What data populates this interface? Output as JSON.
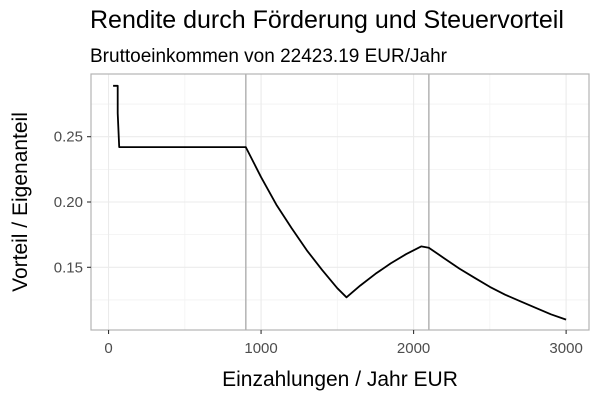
{
  "chart_data": {
    "type": "line",
    "title": "Rendite durch Förderung und Steuervorteil",
    "subtitle": "Bruttoeinkommen von 22423.19 EUR/Jahr",
    "xlabel": "Einzahlungen / Jahr EUR",
    "ylabel": "Vorteil / Eigenanteil",
    "xlim": [
      -115,
      3150
    ],
    "ylim": [
      0.102,
      0.298
    ],
    "x_ticks": [
      0,
      1000,
      2000,
      3000
    ],
    "x_tick_labels": [
      "0",
      "1000",
      "2000",
      "3000"
    ],
    "y_ticks": [
      0.15,
      0.2,
      0.25
    ],
    "y_tick_labels": [
      "0.15",
      "0.20",
      "0.25"
    ],
    "grid": true,
    "vlines": [
      900,
      2100
    ],
    "series": [
      {
        "values_x": [
          30,
          60,
          60,
          70,
          900,
          1000,
          1100,
          1200,
          1300,
          1400,
          1500,
          1560,
          1650,
          1750,
          1850,
          1950,
          2050,
          2100,
          2200,
          2300,
          2400,
          2500,
          2600,
          2700,
          2800,
          2900,
          3000
        ],
        "values_y": [
          0.289,
          0.289,
          0.268,
          0.242,
          0.242,
          0.219,
          0.198,
          0.18,
          0.163,
          0.148,
          0.134,
          0.127,
          0.136,
          0.145,
          0.153,
          0.16,
          0.166,
          0.165,
          0.157,
          0.149,
          0.142,
          0.135,
          0.129,
          0.124,
          0.119,
          0.114,
          0.11
        ]
      }
    ]
  }
}
